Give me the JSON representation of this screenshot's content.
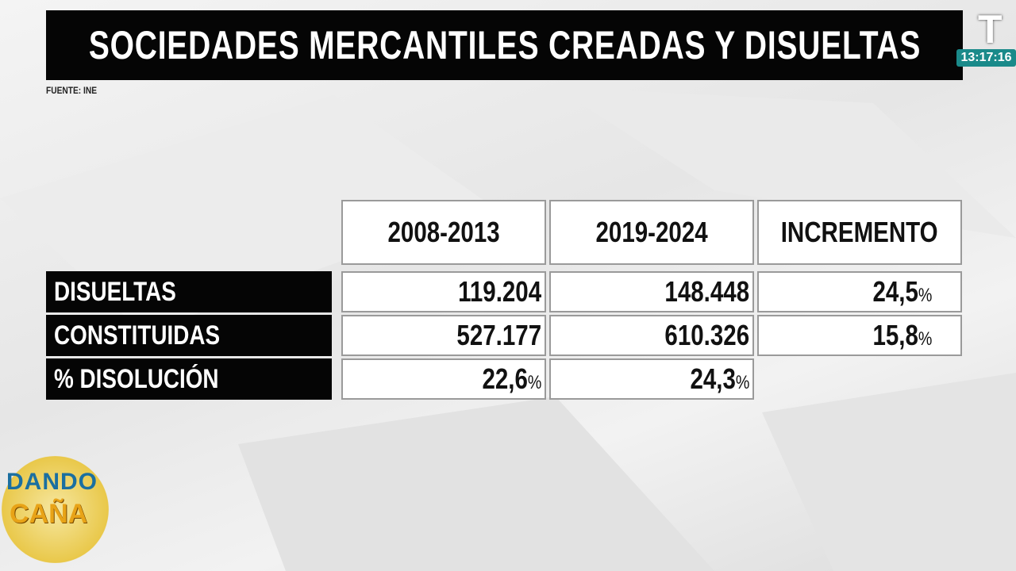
{
  "header": {
    "title": "SOCIEDADES MERCANTILES CREADAS Y DISUELTAS",
    "source": "FUENTE: INE"
  },
  "channel": {
    "logo": "T",
    "clock": "13:17:16"
  },
  "show_logo": [
    "DANDO",
    "CAÑA"
  ],
  "table": {
    "columns": [
      "2008-2013",
      "2019-2024",
      "INCREMENTO"
    ],
    "rows": [
      {
        "label": "DISUELTAS",
        "cells": [
          "119.204",
          "148.448",
          {
            "value": "24,5",
            "unit": "%"
          }
        ]
      },
      {
        "label": "CONSTITUIDAS",
        "cells": [
          "527.177",
          "610.326",
          {
            "value": "15,8",
            "unit": "%"
          }
        ]
      },
      {
        "label": "% DISOLUCIÓN",
        "cells": [
          {
            "value": "22,6",
            "unit": "%"
          },
          {
            "value": "24,3",
            "unit": "%"
          }
        ]
      }
    ]
  }
}
